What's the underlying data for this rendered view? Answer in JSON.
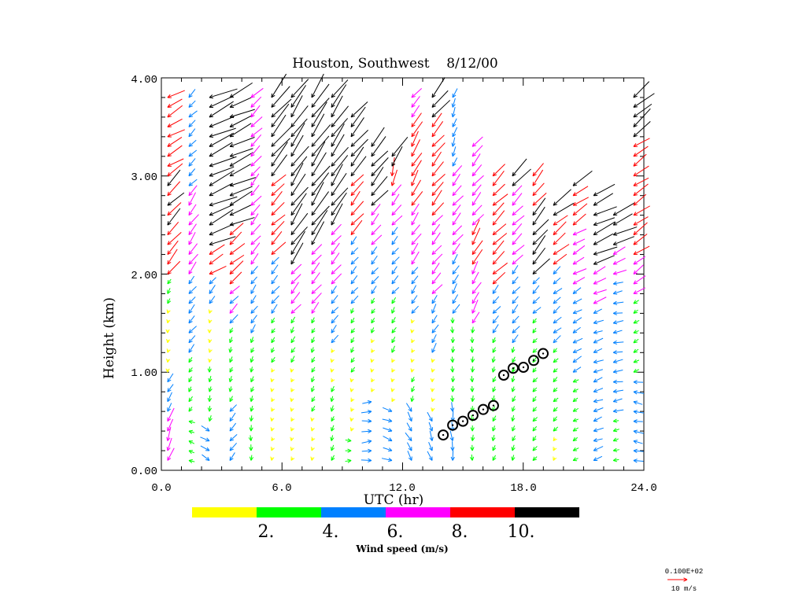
{
  "chart_data": {
    "type": "wind-profile",
    "title": "Houston, Southwest    8/12/00",
    "xlabel": "UTC (hr)",
    "ylabel": "Height (km)",
    "xlim": [
      0,
      24
    ],
    "ylim": [
      0,
      4
    ],
    "x_ticks": [
      "0.0",
      "6.0",
      "12.0",
      "18.0",
      "24.0"
    ],
    "y_ticks": [
      "0.00",
      "1.00",
      "2.00",
      "3.00",
      "4.00"
    ],
    "colorbar": {
      "title": "Wind speed (m/s)",
      "bins": [
        {
          "min": 0,
          "max": 2,
          "color": "#ffff00"
        },
        {
          "min": 2,
          "max": 4,
          "color": "#00ff00"
        },
        {
          "min": 4,
          "max": 6,
          "color": "#0080ff"
        },
        {
          "min": 6,
          "max": 8,
          "color": "#ff00ff"
        },
        {
          "min": 8,
          "max": 10,
          "color": "#ff0000"
        },
        {
          "min": 10,
          "max": 99,
          "color": "#000000"
        }
      ],
      "labels": [
        "2.",
        "4.",
        "6.",
        "8.",
        "10."
      ]
    },
    "reference_vector": {
      "label_top": "0.100E+02",
      "label_bottom": "10 m/s",
      "speed": 10,
      "color": "#ff0000"
    },
    "level_step_km": 0.1,
    "profiles": [
      {
        "t": 0.31,
        "segments": [
          [
            0.1,
            0.5,
            7,
            20
          ],
          [
            0.5,
            0.9,
            5,
            30
          ],
          [
            0.9,
            1.6,
            1.5,
            10
          ],
          [
            1.6,
            1.9,
            3,
            30
          ],
          [
            1.9,
            2.4,
            9,
            40
          ],
          [
            2.4,
            3.0,
            10,
            45
          ],
          [
            3.0,
            3.8,
            9,
            60
          ]
        ]
      },
      {
        "t": 1.37,
        "segments": [
          [
            0.1,
            0.5,
            3,
            110
          ],
          [
            0.5,
            1.1,
            3,
            30
          ],
          [
            1.1,
            1.9,
            5,
            40
          ],
          [
            1.9,
            2.8,
            7,
            35
          ],
          [
            2.8,
            3.8,
            5,
            45
          ]
        ]
      },
      {
        "t": 2.39,
        "segments": [
          [
            0.1,
            0.4,
            5,
            300
          ],
          [
            0.4,
            1.0,
            3,
            10
          ],
          [
            1.0,
            1.6,
            1.5,
            10
          ],
          [
            1.6,
            1.9,
            5,
            40
          ],
          [
            1.9,
            2.2,
            9,
            60
          ],
          [
            2.2,
            3.8,
            14,
            65
          ]
        ]
      },
      {
        "t": 3.41,
        "segments": [
          [
            0.1,
            0.6,
            5,
            40
          ],
          [
            0.6,
            1.4,
            3,
            20
          ],
          [
            1.4,
            1.8,
            6,
            45
          ],
          [
            1.8,
            2.4,
            9,
            50
          ],
          [
            2.4,
            3.8,
            13,
            65
          ]
        ]
      },
      {
        "t": 4.46,
        "segments": [
          [
            0.1,
            0.5,
            3,
            0
          ],
          [
            0.5,
            1.3,
            3,
            20
          ],
          [
            1.3,
            2.0,
            5,
            35
          ],
          [
            2.0,
            3.1,
            7,
            40
          ],
          [
            3.1,
            3.8,
            7.5,
            45
          ]
        ]
      },
      {
        "t": 5.48,
        "segments": [
          [
            0.1,
            1.0,
            1.5,
            20
          ],
          [
            1.0,
            1.5,
            3,
            30
          ],
          [
            1.5,
            2.1,
            5.5,
            40
          ],
          [
            2.1,
            2.9,
            9,
            45
          ],
          [
            2.9,
            3.8,
            14,
            40
          ]
        ]
      },
      {
        "t": 6.46,
        "segments": [
          [
            0.1,
            1.0,
            1.5,
            20
          ],
          [
            1.0,
            1.5,
            3.5,
            30
          ],
          [
            1.5,
            2.0,
            7,
            40
          ],
          [
            2.0,
            3.8,
            13,
            35
          ]
        ]
      },
      {
        "t": 7.48,
        "segments": [
          [
            0.1,
            0.5,
            1.5,
            20
          ],
          [
            0.5,
            1.5,
            3,
            25
          ],
          [
            1.5,
            2.2,
            7,
            40
          ],
          [
            2.2,
            3.8,
            14,
            35
          ]
        ]
      },
      {
        "t": 8.46,
        "segments": [
          [
            0.1,
            0.8,
            3,
            20
          ],
          [
            0.8,
            1.2,
            1.5,
            20
          ],
          [
            1.2,
            1.8,
            5,
            40
          ],
          [
            1.8,
            2.4,
            7,
            40
          ],
          [
            2.4,
            3.8,
            13,
            35
          ]
        ]
      },
      {
        "t": 9.44,
        "segments": [
          [
            0.1,
            0.3,
            3,
            270
          ],
          [
            0.3,
            0.9,
            1.5,
            20
          ],
          [
            0.9,
            1.6,
            3,
            30
          ],
          [
            1.6,
            2.3,
            5,
            40
          ],
          [
            2.3,
            2.9,
            9,
            40
          ],
          [
            2.9,
            3.6,
            12,
            40
          ]
        ]
      },
      {
        "t": 10.45,
        "segments": [
          [
            0.1,
            0.7,
            5,
            265
          ],
          [
            0.7,
            1.3,
            1.5,
            20
          ],
          [
            1.3,
            1.7,
            3,
            30
          ],
          [
            1.7,
            2.2,
            5,
            40
          ],
          [
            2.2,
            2.6,
            7,
            40
          ],
          [
            2.6,
            3.3,
            12,
            40
          ]
        ]
      },
      {
        "t": 11.47,
        "segments": [
          [
            0.1,
            0.6,
            5,
            290
          ],
          [
            0.6,
            1.1,
            1.5,
            20
          ],
          [
            1.1,
            1.7,
            3.5,
            30
          ],
          [
            1.7,
            2.4,
            5,
            40
          ],
          [
            2.4,
            2.8,
            7,
            40
          ],
          [
            2.8,
            3.0,
            9,
            10
          ],
          [
            3.0,
            3.2,
            12,
            35
          ]
        ]
      },
      {
        "t": 12.45,
        "segments": [
          [
            0.1,
            0.6,
            5,
            330
          ],
          [
            0.6,
            0.9,
            3,
            20
          ],
          [
            0.9,
            1.5,
            1.5,
            20
          ],
          [
            1.5,
            2.0,
            5,
            35
          ],
          [
            2.0,
            2.6,
            7,
            35
          ],
          [
            2.6,
            3.5,
            9,
            30
          ],
          [
            3.5,
            3.8,
            7,
            40
          ]
        ]
      },
      {
        "t": 13.47,
        "segments": [
          [
            0.1,
            0.5,
            5,
            340
          ],
          [
            0.5,
            1.1,
            1.5,
            10
          ],
          [
            1.1,
            1.7,
            5,
            30
          ],
          [
            1.7,
            2.5,
            7,
            40
          ],
          [
            2.5,
            3.5,
            9,
            40
          ],
          [
            3.5,
            3.8,
            12,
            40
          ]
        ]
      },
      {
        "t": 14.49,
        "segments": [
          [
            0.1,
            0.6,
            5,
            355
          ],
          [
            0.6,
            1.5,
            3,
            0
          ],
          [
            1.5,
            2.1,
            5.5,
            30
          ],
          [
            2.1,
            3.0,
            7,
            40
          ],
          [
            3.0,
            3.8,
            5,
            20
          ]
        ]
      },
      {
        "t": 15.47,
        "segments": [
          [
            0.1,
            1.4,
            3,
            0
          ],
          [
            1.4,
            2.0,
            7,
            30
          ],
          [
            2.0,
            2.4,
            9,
            30
          ],
          [
            2.4,
            3.3,
            7.5,
            40
          ]
        ]
      },
      {
        "t": 16.49,
        "segments": [
          [
            0.1,
            1.3,
            3,
            20
          ],
          [
            1.3,
            1.8,
            5,
            40
          ],
          [
            1.8,
            3.0,
            9,
            45
          ]
        ]
      },
      {
        "t": 17.46,
        "segments": [
          [
            0.1,
            1.2,
            3,
            20
          ],
          [
            1.2,
            2.0,
            5,
            40
          ],
          [
            2.0,
            2.8,
            7.5,
            45
          ],
          [
            2.8,
            3.0,
            12,
            40
          ]
        ]
      },
      {
        "t": 18.48,
        "segments": [
          [
            0.1,
            1.5,
            3,
            40
          ],
          [
            1.5,
            1.9,
            5,
            45
          ],
          [
            1.9,
            2.6,
            11,
            40
          ],
          [
            2.6,
            3.0,
            9,
            40
          ]
        ]
      },
      {
        "t": 19.5,
        "segments": [
          [
            0.1,
            0.3,
            1.5,
            30
          ],
          [
            0.3,
            1.2,
            3,
            45
          ],
          [
            1.2,
            2.0,
            5,
            50
          ],
          [
            2.0,
            2.5,
            9,
            50
          ],
          [
            2.5,
            2.7,
            12,
            55
          ]
        ]
      },
      {
        "t": 20.48,
        "segments": [
          [
            0.1,
            0.9,
            3,
            60
          ],
          [
            0.9,
            1.8,
            5,
            60
          ],
          [
            1.8,
            2.4,
            7,
            60
          ],
          [
            2.4,
            2.8,
            9,
            55
          ],
          [
            2.8,
            2.9,
            12,
            60
          ]
        ]
      },
      {
        "t": 21.5,
        "segments": [
          [
            0.1,
            1.6,
            5,
            70
          ],
          [
            1.6,
            2.0,
            7,
            65
          ],
          [
            2.0,
            2.8,
            12,
            65
          ]
        ]
      },
      {
        "t": 22.48,
        "segments": [
          [
            0.1,
            0.5,
            3,
            75
          ],
          [
            0.5,
            1.9,
            5,
            80
          ],
          [
            1.9,
            2.2,
            7,
            65
          ],
          [
            2.2,
            2.6,
            12,
            65
          ]
        ]
      },
      {
        "t": 23.49,
        "segments": [
          [
            0.1,
            0.9,
            5,
            100
          ],
          [
            0.9,
            1.7,
            3,
            60
          ],
          [
            1.7,
            2.1,
            7,
            55
          ],
          [
            2.1,
            3.3,
            9,
            55
          ],
          [
            3.3,
            3.8,
            12,
            50
          ]
        ]
      }
    ],
    "markers": {
      "x": [
        14.02,
        14.49,
        15.0,
        15.5,
        16.01,
        16.52,
        17.03,
        17.5,
        18.01,
        18.52,
        18.99
      ],
      "y": [
        0.36,
        0.46,
        0.5,
        0.56,
        0.62,
        0.66,
        0.97,
        1.04,
        1.05,
        1.12,
        1.19
      ]
    }
  }
}
